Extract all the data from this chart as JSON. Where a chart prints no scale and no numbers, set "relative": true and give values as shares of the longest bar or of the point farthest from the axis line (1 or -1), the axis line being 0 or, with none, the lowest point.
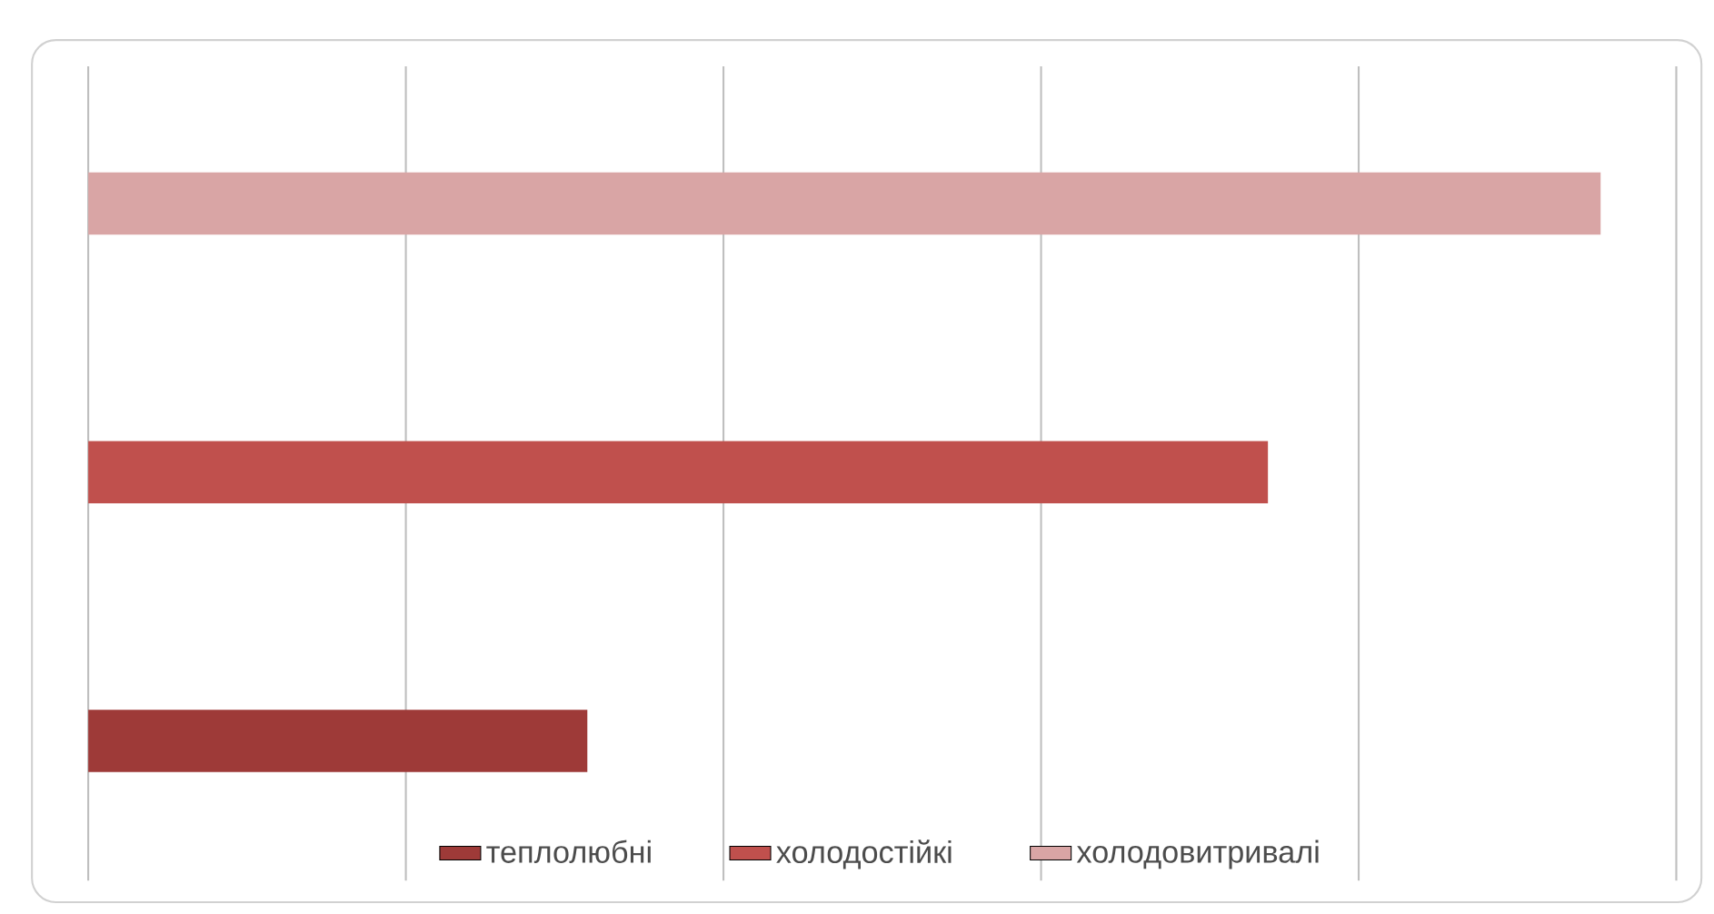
{
  "chart_data": {
    "type": "bar",
    "orientation": "horizontal",
    "stacked": true,
    "relative": true,
    "categories": [
      null,
      null,
      null
    ],
    "series": [
      {
        "name": "теплолюбні",
        "color": "#9e3a38",
        "values": [
          0,
          0,
          0.33
        ]
      },
      {
        "name": "холодостійкі",
        "color": "#c0504d",
        "values": [
          0,
          0.78,
          0
        ]
      },
      {
        "name": "холодовитривалі",
        "color": "#d9a5a5",
        "values": [
          1,
          0,
          0
        ]
      }
    ],
    "grid": "x",
    "legend": "bottom"
  }
}
